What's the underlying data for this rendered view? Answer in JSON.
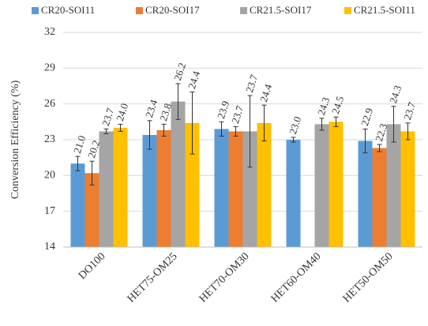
{
  "chart_data": {
    "type": "bar",
    "y_label": "Conversion Efficiency (%)",
    "categories": [
      "DO100",
      "HET75-OM25",
      "HET70-OM30",
      "HET60-OM40",
      "HET50-OM50"
    ],
    "series": [
      {
        "name": "CR20-SOI11",
        "color": "#5b9bd5",
        "values": [
          21.0,
          23.4,
          23.9,
          23.0,
          22.9
        ],
        "value_labels": [
          "21.0",
          "23.4",
          "23.9",
          "23.0",
          "22.9"
        ],
        "errors": [
          0.6,
          1.2,
          0.6,
          0.2,
          1.0
        ]
      },
      {
        "name": "CR20-SOI17",
        "color": "#ed7d31",
        "values": [
          20.2,
          23.8,
          23.7,
          null,
          22.3
        ],
        "value_labels": [
          "20.2",
          "23.8",
          "23.7",
          null,
          "22.3"
        ],
        "errors": [
          1.0,
          0.5,
          0.4,
          null,
          0.3
        ]
      },
      {
        "name": "CR21.5-SOI17",
        "color": "#a5a5a5",
        "values": [
          23.7,
          26.2,
          23.7,
          24.3,
          24.3
        ],
        "value_labels": [
          "23.7",
          "26.2",
          "23.7",
          "24.3",
          "24.3"
        ],
        "errors": [
          0.2,
          1.5,
          3.0,
          0.5,
          1.5
        ]
      },
      {
        "name": "CR21.5-SOI11",
        "color": "#ffc000",
        "values": [
          24.0,
          24.4,
          24.4,
          24.5,
          23.7
        ],
        "value_labels": [
          "24.0",
          "24.4",
          "24.4",
          "24.5",
          "23.7"
        ],
        "errors": [
          0.3,
          2.6,
          1.5,
          0.4,
          0.7
        ]
      }
    ],
    "ylim": [
      14,
      32
    ],
    "yticks": [
      14,
      17,
      20,
      23,
      26,
      29,
      32
    ],
    "grid": true,
    "legend": "top"
  }
}
